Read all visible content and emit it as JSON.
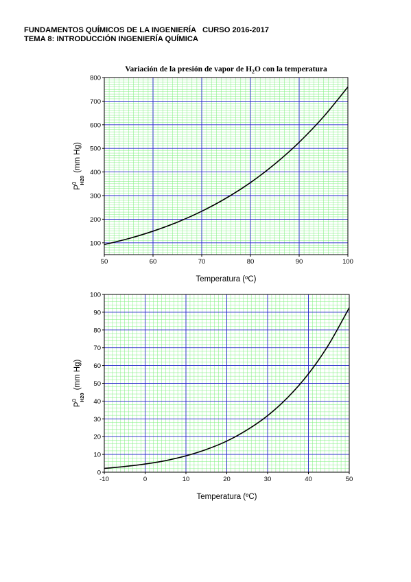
{
  "header": {
    "line1": "FUNDAMENTOS QUÍMICOS DE LA INGENIERÍA   CURSO 2016-2017",
    "line2": "TEMA 8: INTRODUCCIÓN INGENIERÍA QUÍMICA"
  },
  "chart_data": [
    {
      "type": "line",
      "title_parts": [
        "Variación de la presión de vapor de H",
        "2",
        "O con la temperatura"
      ],
      "xlabel": "Temperatura (ºC)",
      "ylabel_main": "P",
      "ylabel_sup": "0",
      "ylabel_sub": "H20",
      "ylabel_units": "(mm Hg)",
      "xlim": [
        50,
        100
      ],
      "ylim": [
        50,
        800
      ],
      "xticks": [
        50,
        60,
        70,
        80,
        90,
        100
      ],
      "yticks": [
        100,
        200,
        300,
        400,
        500,
        600,
        700,
        800
      ],
      "grid": true,
      "series": [
        {
          "x": [
            50,
            55,
            60,
            65,
            70,
            75,
            80,
            85,
            90,
            95,
            100
          ],
          "y": [
            92.5,
            118.0,
            149.4,
            187.5,
            233.7,
            289.1,
            355.1,
            433.6,
            525.8,
            633.9,
            760.0
          ]
        }
      ]
    },
    {
      "type": "line",
      "xlabel": "Temperatura (ºC)",
      "ylabel_main": "P",
      "ylabel_sup": "0",
      "ylabel_sub": "H20",
      "ylabel_units": "(mm Hg)",
      "xlim": [
        -10,
        50
      ],
      "ylim": [
        0,
        100
      ],
      "xticks": [
        -10,
        0,
        10,
        20,
        30,
        40,
        50
      ],
      "yticks": [
        0,
        10,
        20,
        30,
        40,
        50,
        60,
        70,
        80,
        90,
        100
      ],
      "grid": true,
      "series": [
        {
          "x": [
            -10,
            -5,
            0,
            5,
            10,
            15,
            20,
            25,
            30,
            35,
            40,
            45,
            50
          ],
          "y": [
            2.1,
            3.2,
            4.6,
            6.5,
            9.2,
            12.8,
            17.5,
            23.8,
            31.8,
            42.2,
            55.3,
            71.9,
            92.5
          ]
        }
      ]
    }
  ],
  "colors": {
    "minor_grid": "#7cf07c",
    "major_grid": "#2222cc",
    "curve": "#000000"
  }
}
